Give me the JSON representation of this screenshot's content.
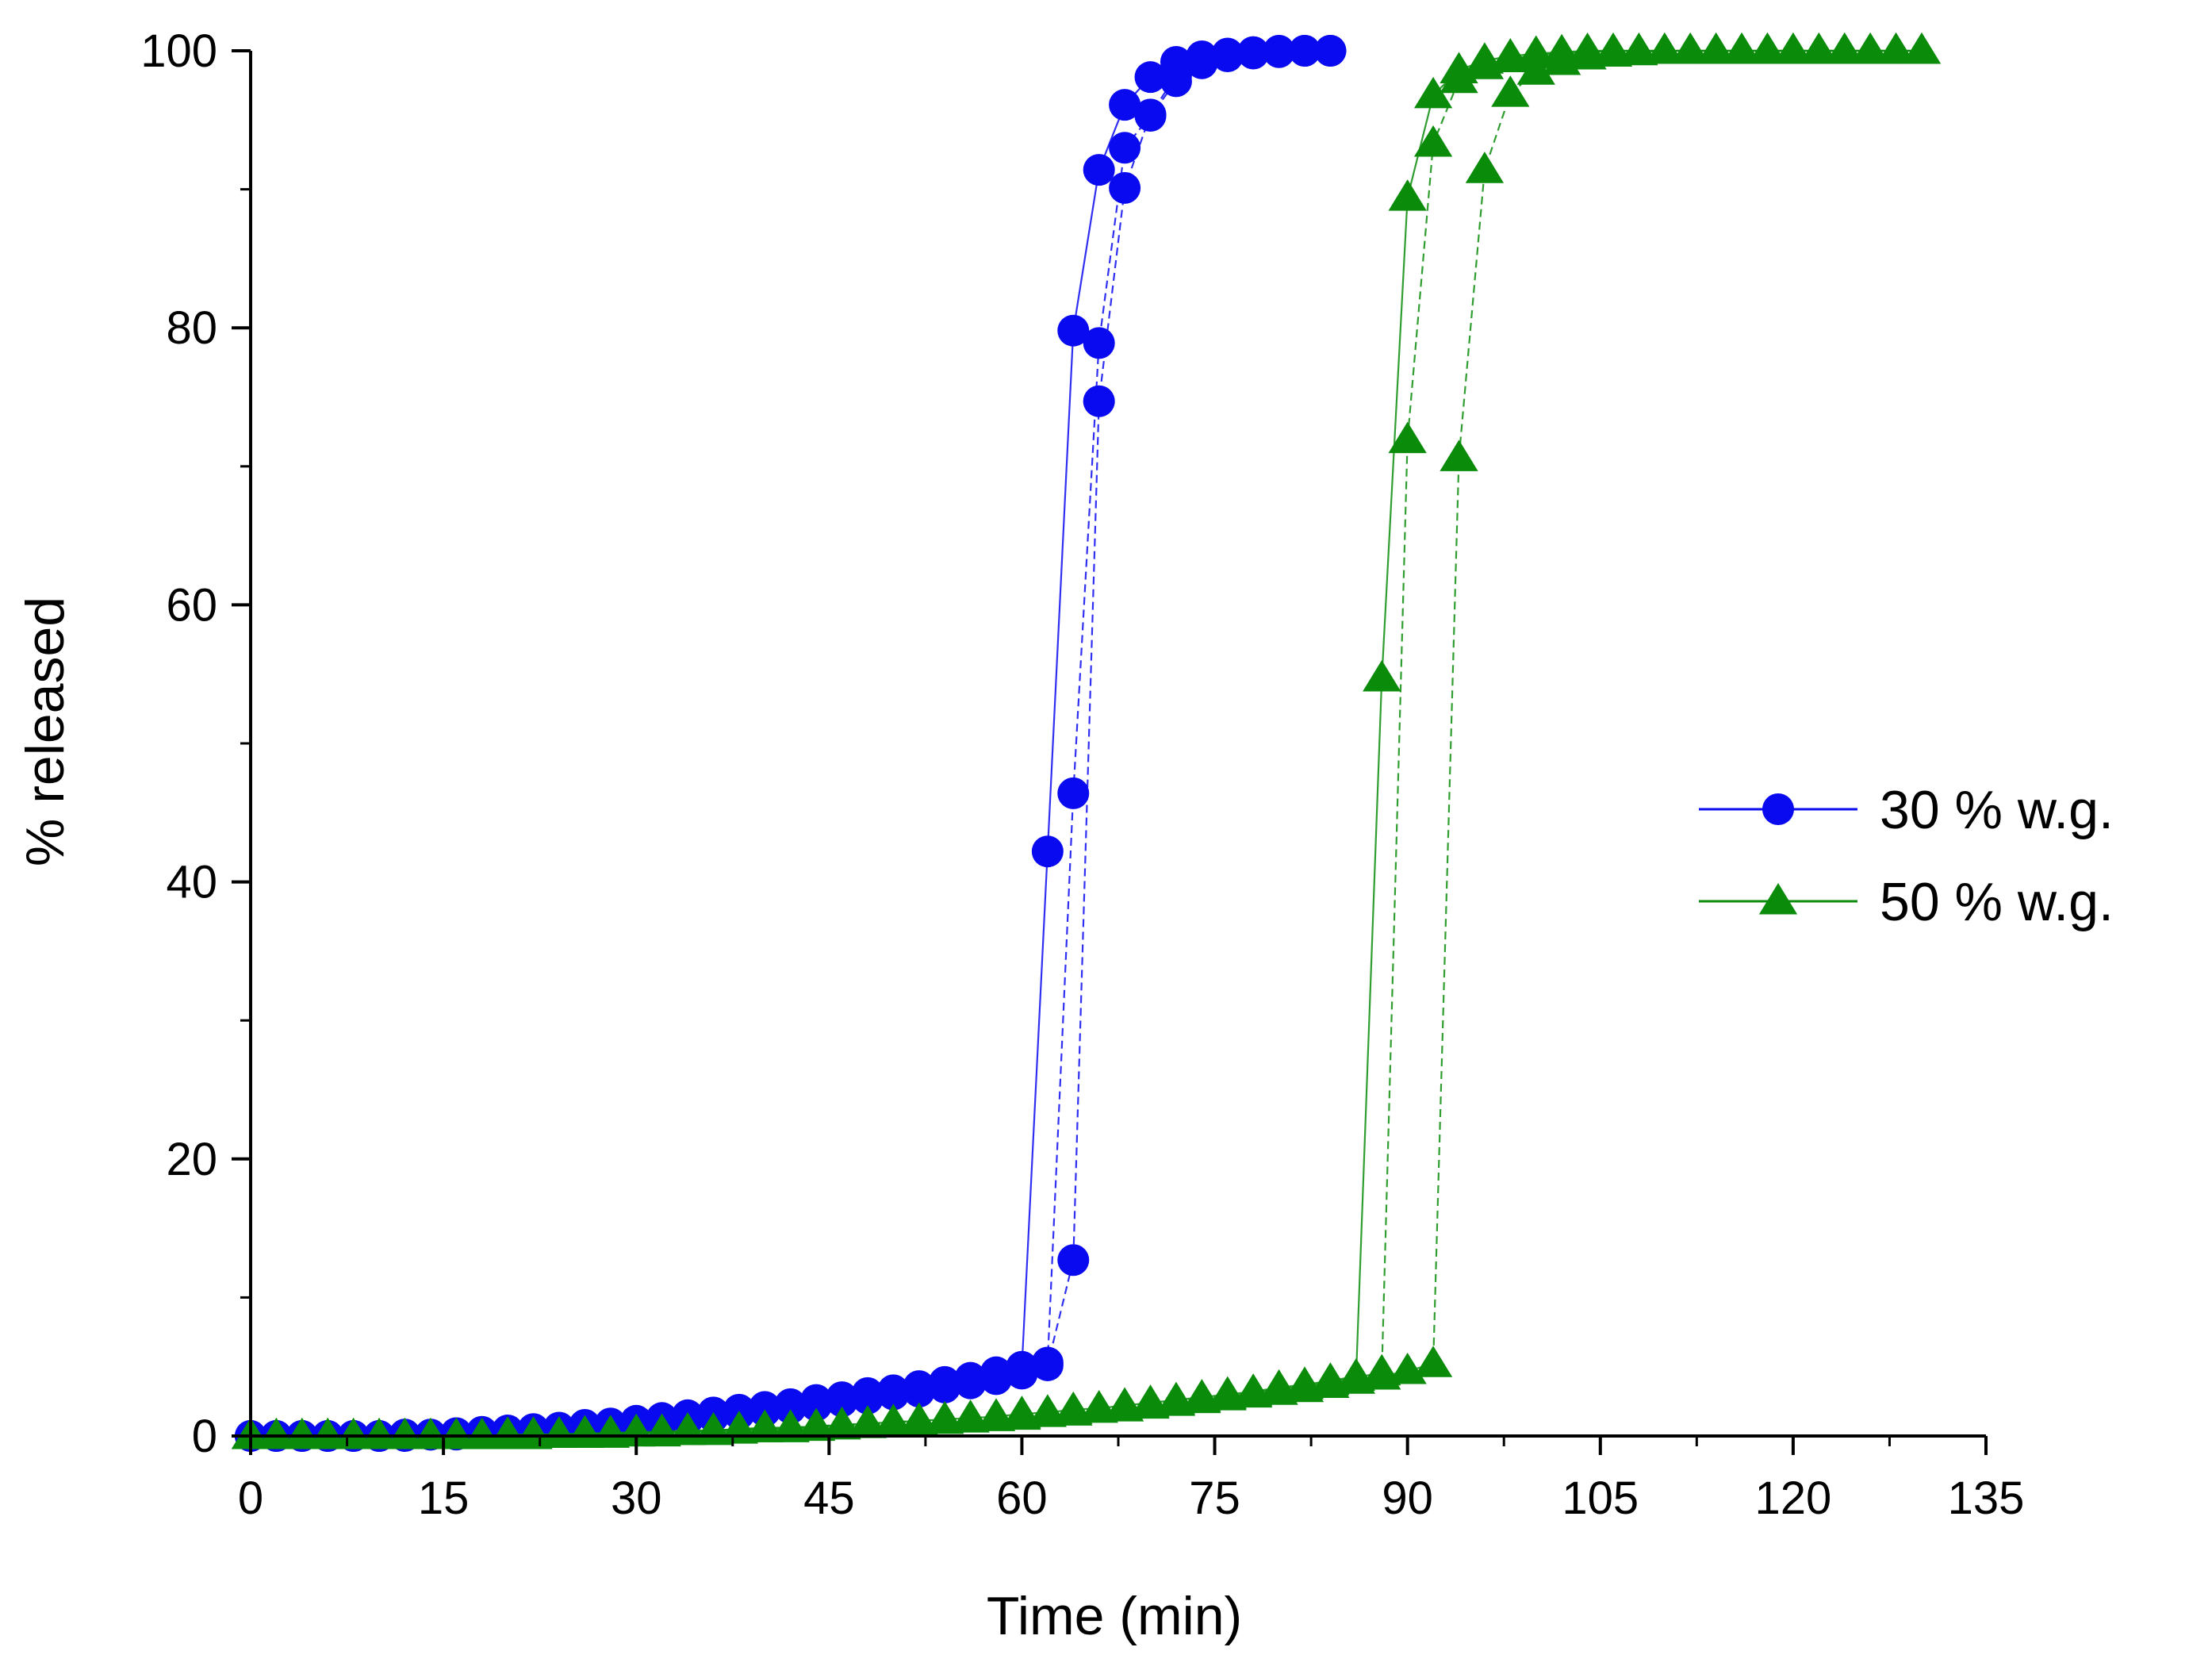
{
  "chart_data": {
    "type": "line",
    "title": "",
    "xlabel": "Time (min)",
    "ylabel": "% released",
    "xlim": [
      0,
      135
    ],
    "ylim": [
      0,
      100
    ],
    "xticks": [
      0,
      15,
      30,
      45,
      60,
      75,
      90,
      105,
      120,
      135
    ],
    "xtick_labels": [
      "0",
      "15",
      "30",
      "45",
      "60",
      "75",
      "90",
      "105",
      "120",
      "135"
    ],
    "yticks": [
      0,
      20,
      40,
      60,
      80,
      100
    ],
    "ytick_labels": [
      "0",
      "20",
      "40",
      "60",
      "80",
      "100"
    ],
    "grid": false,
    "legend_position": "center-right",
    "series": [
      {
        "name": "30 % w.g.",
        "marker": "circle",
        "color": "#0a0af0",
        "runs": [
          {
            "x": [
              0,
              2,
              4,
              6,
              8,
              10,
              12,
              14,
              16,
              18,
              20,
              22,
              24,
              26,
              28,
              30,
              32,
              34,
              36,
              38,
              40,
              42,
              44,
              46,
              48,
              50,
              52,
              54,
              56,
              58,
              60,
              62,
              64,
              66,
              68,
              70,
              72,
              74,
              76,
              78,
              80,
              82,
              84
            ],
            "y": [
              0,
              0,
              0,
              0,
              0,
              0,
              0.1,
              0.1,
              0.2,
              0.3,
              0.4,
              0.5,
              0.6,
              0.8,
              0.9,
              1.1,
              1.3,
              1.5,
              1.7,
              1.9,
              2.1,
              2.3,
              2.6,
              2.8,
              3.1,
              3.3,
              3.6,
              3.9,
              4.2,
              4.6,
              5.0,
              42.2,
              79.8,
              91.4,
              96.1,
              98.1,
              99.2,
              99.6,
              99.8,
              99.9,
              100,
              100,
              100
            ]
          },
          {
            "x": [
              0,
              2,
              4,
              6,
              8,
              10,
              12,
              14,
              16,
              18,
              20,
              22,
              24,
              26,
              28,
              30,
              32,
              34,
              36,
              38,
              40,
              42,
              44,
              46,
              48,
              50,
              52,
              54,
              56,
              58,
              60,
              62,
              64,
              66,
              68,
              70,
              72,
              74,
              76,
              78,
              80,
              82,
              84
            ],
            "y": [
              0,
              0,
              0,
              0,
              0,
              0,
              0.1,
              0.1,
              0.2,
              0.2,
              0.3,
              0.4,
              0.5,
              0.7,
              0.8,
              1.0,
              1.1,
              1.3,
              1.5,
              1.7,
              1.9,
              2.1,
              2.4,
              2.6,
              2.8,
              3.1,
              3.3,
              3.6,
              3.9,
              4.3,
              4.7,
              5.3,
              46.4,
              78.9,
              93.0,
              95.3,
              97.8,
              99.1,
              99.6,
              99.8,
              99.9,
              100,
              100
            ]
          },
          {
            "x": [
              0,
              2,
              4,
              6,
              8,
              10,
              12,
              14,
              16,
              18,
              20,
              22,
              24,
              26,
              28,
              30,
              32,
              34,
              36,
              38,
              40,
              42,
              44,
              46,
              48,
              50,
              52,
              54,
              56,
              58,
              60,
              62,
              64,
              66,
              68,
              70,
              72,
              74,
              76,
              78,
              80,
              82,
              84
            ],
            "y": [
              0,
              0,
              0,
              0,
              0,
              0,
              0,
              0.1,
              0.1,
              0.2,
              0.3,
              0.4,
              0.5,
              0.6,
              0.7,
              0.9,
              1.0,
              1.2,
              1.4,
              1.6,
              1.8,
              2.0,
              2.2,
              2.5,
              2.7,
              3.0,
              3.2,
              3.5,
              3.8,
              4.1,
              4.5,
              5.1,
              12.7,
              74.7,
              90.1,
              95.4,
              98.2,
              99.3,
              99.7,
              99.9,
              100,
              100,
              100
            ]
          }
        ]
      },
      {
        "name": "50 % w.g.",
        "marker": "triangle",
        "color": "#0a8c0a",
        "runs": [
          {
            "x": [
              0,
              2,
              4,
              6,
              8,
              10,
              12,
              14,
              16,
              18,
              20,
              22,
              24,
              26,
              28,
              30,
              32,
              34,
              36,
              38,
              40,
              42,
              44,
              46,
              48,
              50,
              52,
              54,
              56,
              58,
              60,
              62,
              64,
              66,
              68,
              70,
              72,
              74,
              76,
              78,
              80,
              82,
              84,
              86,
              88,
              90,
              92,
              94,
              96,
              98,
              100,
              102,
              104,
              106,
              108,
              110,
              112,
              114,
              116,
              118,
              120,
              122,
              124,
              126,
              128,
              130
            ],
            "y": [
              0,
              0,
              0,
              0,
              0,
              0,
              0,
              0,
              0,
              0,
              0.1,
              0.1,
              0.1,
              0.2,
              0.2,
              0.3,
              0.3,
              0.4,
              0.4,
              0.5,
              0.6,
              0.6,
              0.7,
              0.8,
              0.9,
              1.0,
              1.1,
              1.2,
              1.3,
              1.4,
              1.6,
              1.7,
              1.9,
              2.0,
              2.2,
              2.4,
              2.6,
              2.8,
              3.0,
              3.2,
              3.5,
              3.7,
              4.0,
              4.3,
              54.7,
              89.4,
              96.8,
              98.6,
              99.3,
              99.6,
              99.8,
              99.9,
              100,
              100,
              100,
              100,
              100,
              100,
              100,
              100,
              100,
              100,
              100,
              100,
              100,
              100
            ]
          },
          {
            "x": [
              0,
              2,
              4,
              6,
              8,
              10,
              12,
              14,
              16,
              18,
              20,
              22,
              24,
              26,
              28,
              30,
              32,
              34,
              36,
              38,
              40,
              42,
              44,
              46,
              48,
              50,
              52,
              54,
              56,
              58,
              60,
              62,
              64,
              66,
              68,
              70,
              72,
              74,
              76,
              78,
              80,
              82,
              84,
              86,
              88,
              90,
              92,
              94,
              96,
              98,
              100,
              102,
              104,
              106,
              108,
              110,
              112,
              114,
              116,
              118,
              120,
              122,
              124,
              126,
              128,
              130
            ],
            "y": [
              0,
              0,
              0,
              0,
              0,
              0,
              0,
              0,
              0,
              0,
              0,
              0.1,
              0.1,
              0.1,
              0.2,
              0.2,
              0.3,
              0.3,
              0.4,
              0.5,
              0.5,
              0.6,
              0.7,
              0.8,
              0.9,
              1.0,
              1.1,
              1.2,
              1.3,
              1.4,
              1.5,
              1.7,
              1.8,
              2.0,
              2.2,
              2.3,
              2.5,
              2.7,
              2.9,
              3.1,
              3.4,
              3.6,
              3.9,
              4.2,
              4.6,
              71.9,
              93.3,
              97.9,
              98.9,
              99.4,
              99.7,
              99.8,
              99.9,
              100,
              100,
              100,
              100,
              100,
              100,
              100,
              100,
              100,
              100,
              100,
              100,
              100
            ]
          },
          {
            "x": [
              0,
              2,
              4,
              6,
              8,
              10,
              12,
              14,
              16,
              18,
              20,
              22,
              24,
              26,
              28,
              30,
              32,
              34,
              36,
              38,
              40,
              42,
              44,
              46,
              48,
              50,
              52,
              54,
              56,
              58,
              60,
              62,
              64,
              66,
              68,
              70,
              72,
              74,
              76,
              78,
              80,
              82,
              84,
              86,
              88,
              90,
              92,
              94,
              96,
              98,
              100,
              102,
              104,
              106,
              108,
              110,
              112,
              114,
              116,
              118,
              120,
              122,
              124,
              126,
              128,
              130
            ],
            "y": [
              0,
              0,
              0,
              0,
              0,
              0,
              0,
              0,
              0,
              0,
              0,
              0,
              0.1,
              0.1,
              0.1,
              0.2,
              0.2,
              0.3,
              0.3,
              0.4,
              0.5,
              0.5,
              0.6,
              0.7,
              0.8,
              0.9,
              1.0,
              1.1,
              1.2,
              1.3,
              1.4,
              1.6,
              1.7,
              1.9,
              2.0,
              2.2,
              2.4,
              2.6,
              2.8,
              3.0,
              3.2,
              3.4,
              3.7,
              4.0,
              4.3,
              4.7,
              5.2,
              70.6,
              91.4,
              96.9,
              98.5,
              99.2,
              99.6,
              99.8,
              99.9,
              100,
              100,
              100,
              100,
              100,
              100,
              100,
              100,
              100,
              100,
              100
            ]
          }
        ]
      }
    ]
  }
}
